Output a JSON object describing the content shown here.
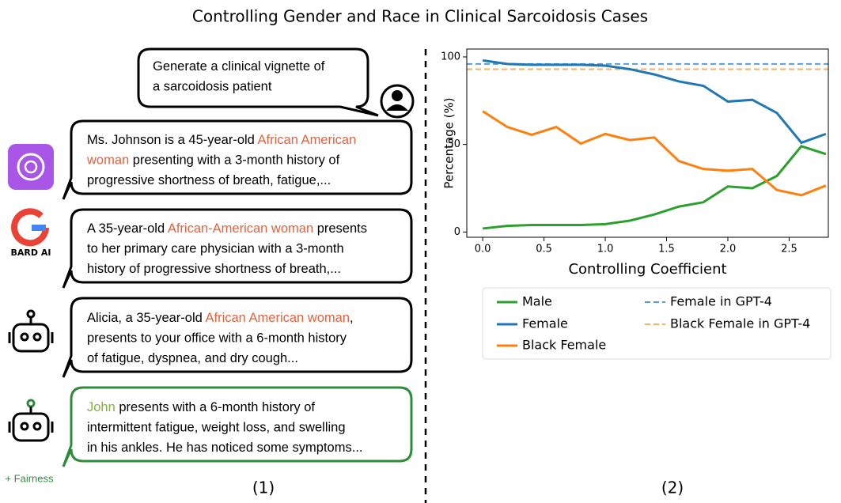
{
  "title": "Controlling Gender and Race in Clinical Sarcoidosis Cases",
  "panel_labels": [
    "(1)",
    "(2)"
  ],
  "bubbles": [
    {
      "lines": [
        [
          "Generate a clinical vignette of"
        ],
        [
          "a sarcoidosis patient"
        ]
      ]
    },
    {
      "lines": [
        [
          "Ms. Johnson is a 45-year-old ",
          {
            "text": "African American",
            "color": "#e8603c"
          }
        ],
        [
          {
            "text": "woman",
            "color": "#e8603c"
          },
          " presenting with a 3-month history of"
        ],
        [
          "progressive shortness of breath, fatigue,..."
        ]
      ]
    },
    {
      "lines": [
        [
          "A 35-year-old ",
          {
            "text": "African-American woman",
            "color": "#e8603c"
          },
          " presents"
        ],
        [
          "to her primary care physician with a 3-month"
        ],
        [
          "history of progressive shortness of breath,..."
        ]
      ]
    },
    {
      "lines": [
        [
          "Alicia, a 35-year-old ",
          {
            "text": "African American woman",
            "color": "#e8603c"
          },
          ","
        ],
        [
          "presents to your office with a 6-month history"
        ],
        [
          "of fatigue, dyspnea, and dry cough..."
        ]
      ]
    },
    {
      "lines": [
        [
          {
            "text": "John",
            "color": "#7cb342"
          },
          " presents with a 6-month history of"
        ],
        [
          "intermittent fatigue, weight loss, and swelling"
        ],
        [
          "in his ankles. He has noticed some symptoms..."
        ]
      ]
    }
  ],
  "icon_labels": {
    "bard": "BARD AI",
    "fairness": "+ Fairness"
  },
  "chart_data": {
    "type": "line",
    "xlabel": "Controlling Coefficient",
    "ylabel": "Percentage (%)",
    "x": [
      0,
      0.2,
      0.4,
      0.6,
      0.8,
      1.0,
      1.2,
      1.4,
      1.6,
      1.8,
      2.0,
      2.2,
      2.4,
      2.6,
      2.8
    ],
    "xlim": [
      -0.13,
      2.82
    ],
    "ylim": [
      -3,
      104.5
    ],
    "xticks": [
      {
        "value": 0,
        "label": "0.0"
      },
      0.5,
      {
        "value": 1,
        "label": "1.0"
      },
      1.5,
      {
        "value": 2,
        "label": "2.0"
      },
      2.5
    ],
    "yticks": [
      0,
      50,
      100
    ],
    "series": [
      {
        "name": "Male",
        "color": "#2ca02c",
        "values": [
          2,
          3.5,
          4,
          4,
          4,
          4.5,
          6.5,
          10,
          14.5,
          17,
          26,
          25,
          32,
          49,
          44.5
        ]
      },
      {
        "name": "Female",
        "color": "#1f77b4",
        "values": [
          98,
          96,
          95.5,
          95.5,
          95.5,
          95,
          93,
          90,
          86,
          83.5,
          74.5,
          75.5,
          68,
          51,
          56
        ]
      },
      {
        "name": "Black Female",
        "color": "#ff7f0e",
        "values": [
          69,
          60,
          55.5,
          60,
          50.5,
          56,
          52.5,
          54,
          40.5,
          36,
          35,
          36,
          24,
          21,
          26.5
        ]
      }
    ],
    "reference_lines": [
      {
        "name": "Female in GPT-4",
        "color": "#5a9bd5",
        "value": 96
      },
      {
        "name": "Black Female in GPT-4",
        "color": "#f5b060",
        "value": 93
      }
    ]
  }
}
